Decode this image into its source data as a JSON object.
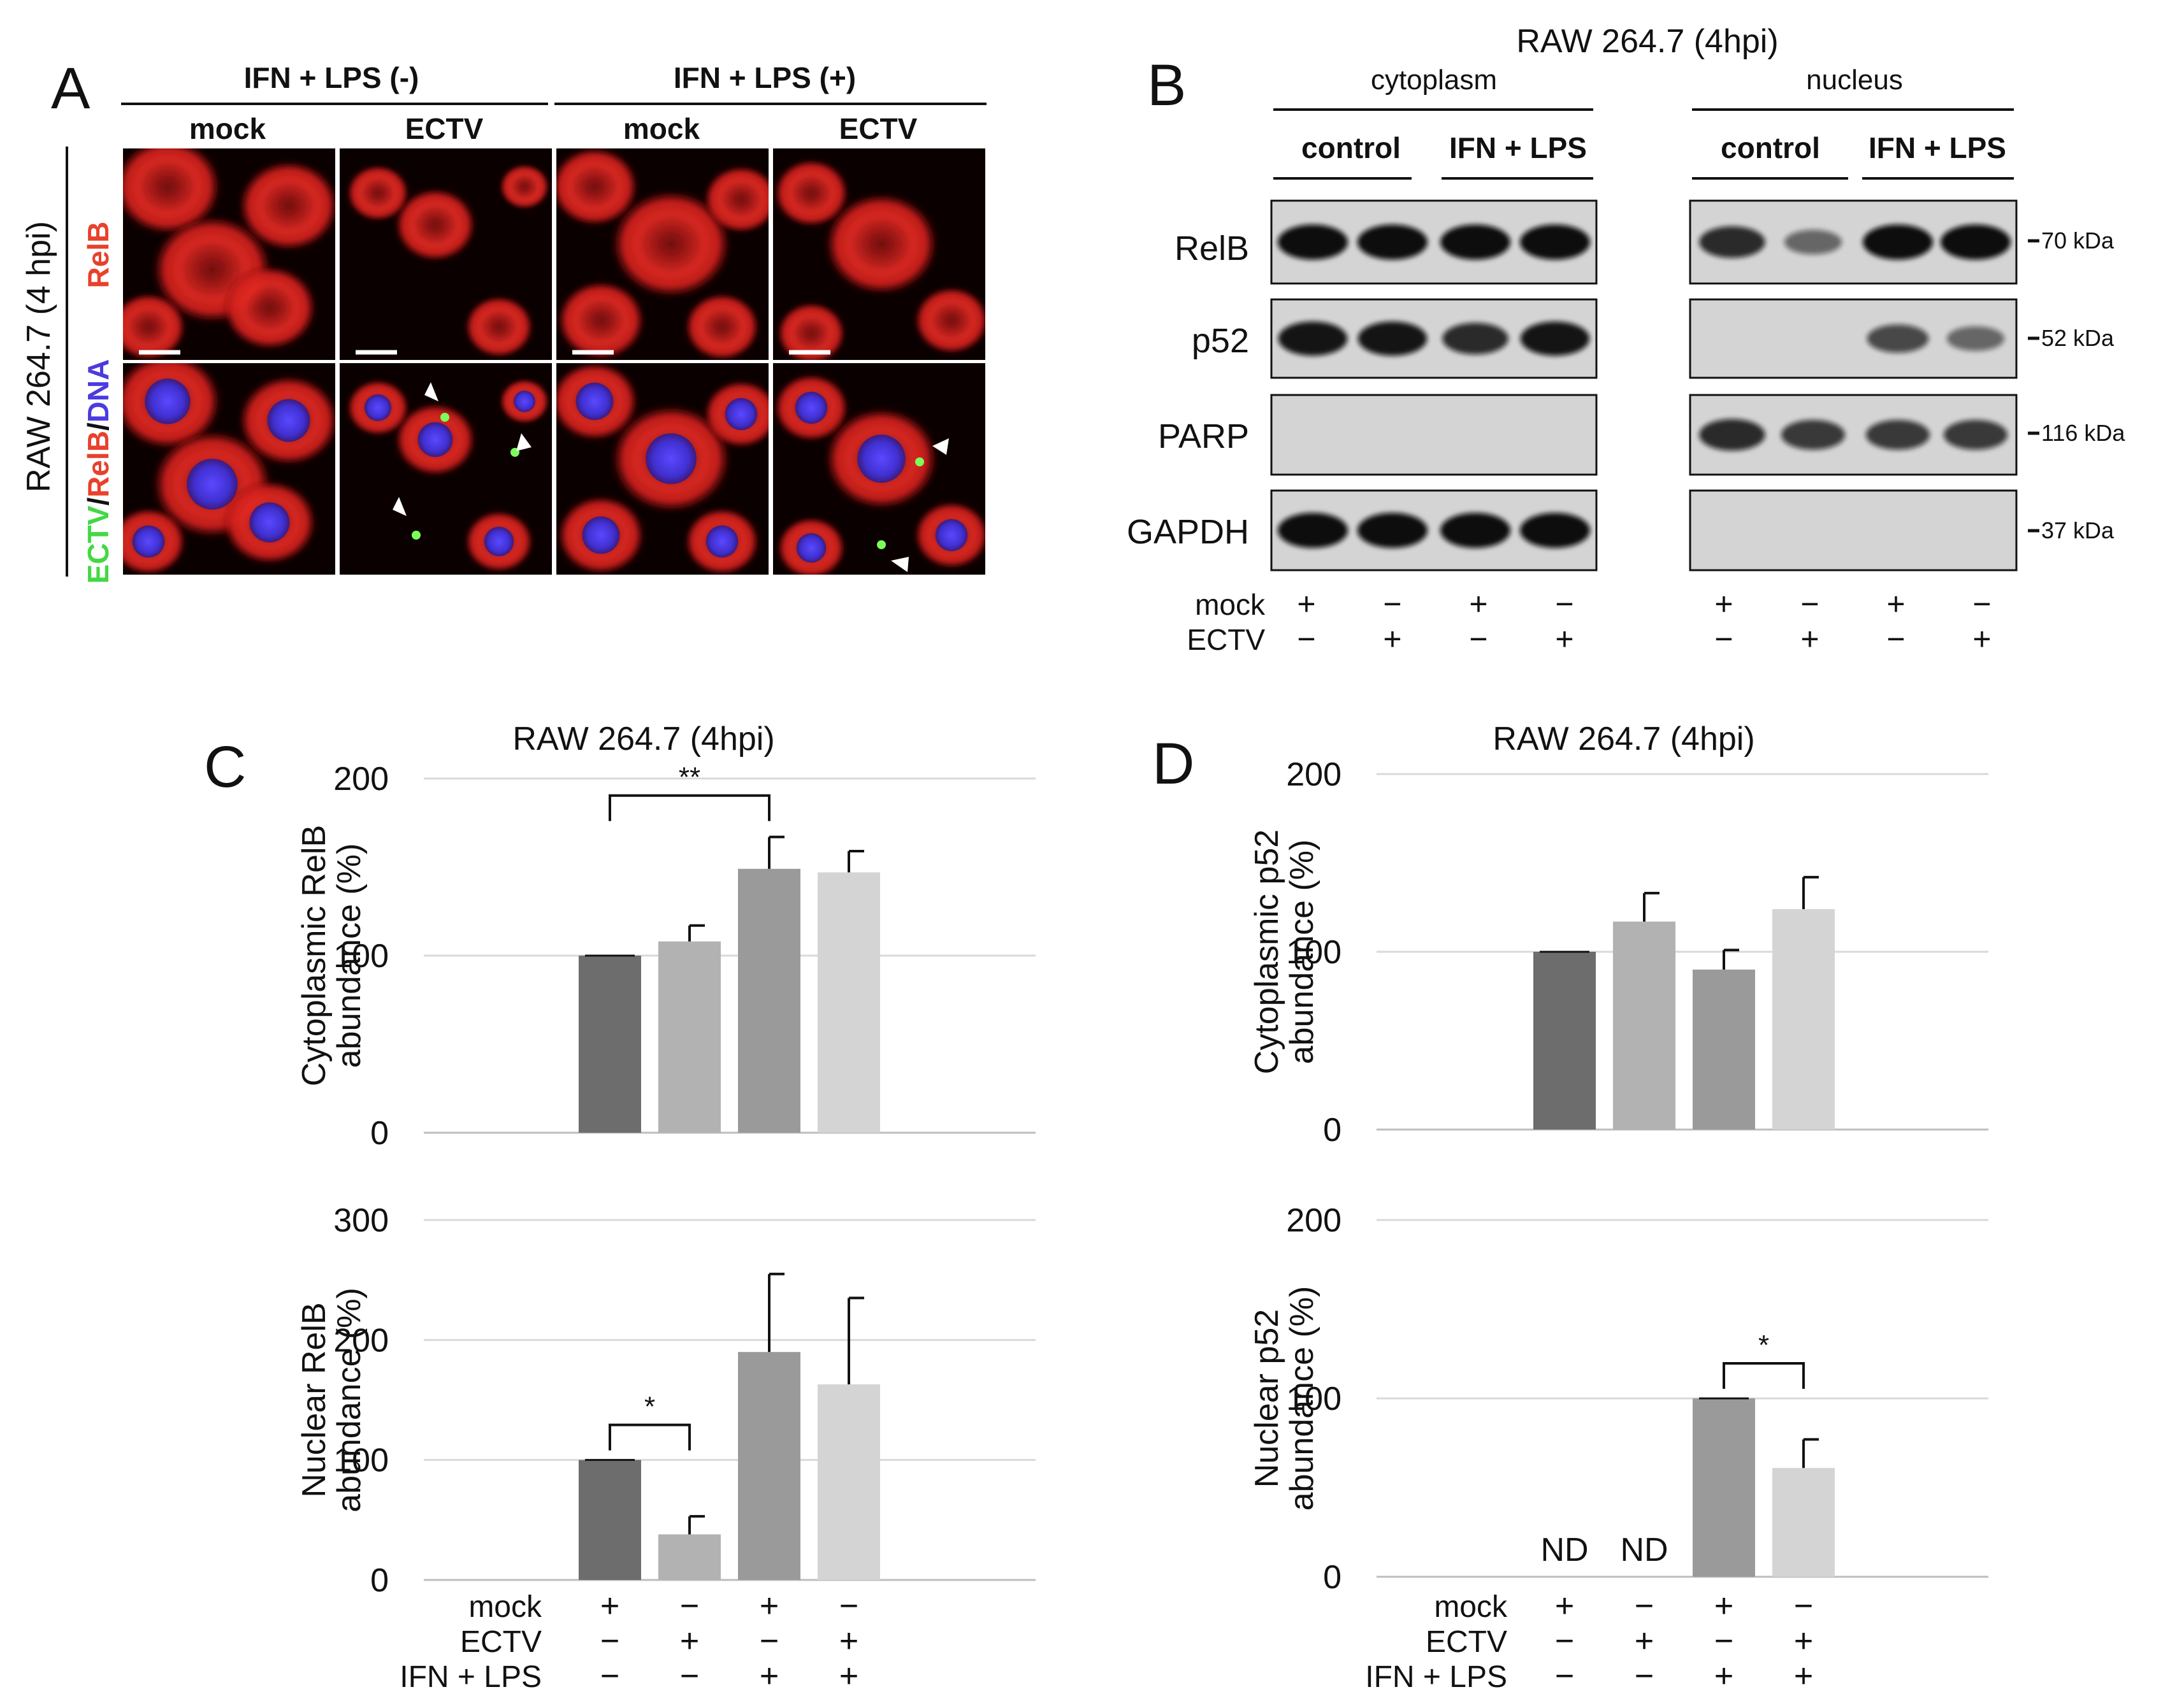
{
  "panel_letters": {
    "a": "A",
    "b": "B",
    "c": "C",
    "d": "D"
  },
  "panel_a": {
    "row_label": "RAW 264.7 (4 hpi)",
    "channel_top": "RelB",
    "channel_bottom": {
      "ectv": "ECTV",
      "sep1": "/",
      "relb": "RelB",
      "sep2": "/",
      "dna": "DNA"
    },
    "group_labels": [
      "IFN + LPS (-)",
      "IFN + LPS (+)"
    ],
    "column_labels": [
      "mock",
      "ECTV",
      "mock",
      "ECTV"
    ],
    "colors": {
      "relb": "#e8412c",
      "dna": "#4b3be0",
      "ectv": "#44d844"
    }
  },
  "panel_b": {
    "title": "RAW 264.7 (4hpi)",
    "fractions": [
      "cytoplasm",
      "nucleus"
    ],
    "condition_labels": [
      "control",
      "IFN + LPS",
      "control",
      "IFN + LPS"
    ],
    "proteins": [
      "RelB",
      "p52",
      "PARP",
      "GAPDH"
    ],
    "markers": [
      "70 kDa",
      "52 kDa",
      "116 kDa",
      "37 kDa"
    ],
    "row_labels": [
      "mock",
      "ECTV"
    ],
    "mock_signs": [
      "+",
      "−",
      "+",
      "−",
      "+",
      "−",
      "+",
      "−"
    ],
    "ectv_signs": [
      "−",
      "+",
      "−",
      "+",
      "−",
      "+",
      "−",
      "+"
    ],
    "band_levels": {
      "cytoplasm": {
        "RelB": [
          1.0,
          1.0,
          1.0,
          1.0
        ],
        "p52": [
          0.95,
          0.95,
          0.8,
          0.95
        ],
        "PARP": [
          0,
          0,
          0,
          0
        ],
        "GAPDH": [
          1.0,
          1.0,
          1.0,
          1.0
        ]
      },
      "nucleus": {
        "RelB": [
          0.8,
          0.4,
          1.0,
          1.0
        ],
        "p52": [
          0,
          0,
          0.6,
          0.4
        ],
        "PARP": [
          0.8,
          0.7,
          0.7,
          0.7
        ],
        "GAPDH": [
          0,
          0,
          0,
          0
        ]
      }
    }
  },
  "chart_data": [
    {
      "type": "bar",
      "panel": "C",
      "title": "RAW 264.7 (4hpi)",
      "ylabel": [
        "Cytoplasmic RelB",
        "abundance (%)"
      ],
      "ylim": [
        0,
        200
      ],
      "yticks": [
        0,
        100,
        200
      ],
      "values": [
        100,
        108,
        149,
        147
      ],
      "errors": [
        0,
        9,
        18,
        12
      ],
      "value_labels": [
        "",
        "",
        "",
        ""
      ],
      "significance": [
        {
          "from": 0,
          "to": 2,
          "label": "**"
        }
      ],
      "colors": [
        "#6d6d6d",
        "#b2b2b2",
        "#9a9a9a",
        "#d4d4d4"
      ],
      "grid": true
    },
    {
      "type": "bar",
      "panel": "C",
      "ylabel": [
        "Nuclear RelB",
        "abundance (%)"
      ],
      "ylim": [
        0,
        300
      ],
      "yticks": [
        0,
        100,
        200,
        300
      ],
      "values": [
        100,
        38,
        190,
        163
      ],
      "errors": [
        0,
        15,
        65,
        72
      ],
      "value_labels": [
        "",
        "",
        "",
        ""
      ],
      "significance": [
        {
          "from": 0,
          "to": 1,
          "label": "*"
        }
      ],
      "colors": [
        "#6d6d6d",
        "#b2b2b2",
        "#9a9a9a",
        "#d4d4d4"
      ],
      "grid": true
    },
    {
      "type": "bar",
      "panel": "D",
      "title": "RAW 264.7 (4hpi)",
      "ylabel": [
        "Cytoplasmic p52",
        "abundance (%)"
      ],
      "ylim": [
        0,
        200
      ],
      "yticks": [
        0,
        100,
        200
      ],
      "values": [
        100,
        117,
        90,
        124
      ],
      "errors": [
        0,
        16,
        11,
        18
      ],
      "value_labels": [
        "",
        "",
        "",
        ""
      ],
      "significance": [],
      "colors": [
        "#6d6d6d",
        "#b2b2b2",
        "#9a9a9a",
        "#d4d4d4"
      ],
      "grid": true
    },
    {
      "type": "bar",
      "panel": "D",
      "ylabel": [
        "Nuclear p52",
        "abundance (%)"
      ],
      "ylim": [
        0,
        200
      ],
      "yticks": [
        0,
        100,
        200
      ],
      "values": [
        null,
        null,
        100,
        61
      ],
      "errors": [
        0,
        0,
        0,
        16
      ],
      "value_labels": [
        "ND",
        "ND",
        "",
        ""
      ],
      "significance": [
        {
          "from": 2,
          "to": 3,
          "label": "*"
        }
      ],
      "colors": [
        "#6d6d6d",
        "#b2b2b2",
        "#9a9a9a",
        "#d4d4d4"
      ],
      "grid": true
    }
  ],
  "condition_table": {
    "rows": [
      "mock",
      "ECTV",
      "IFN + LPS"
    ],
    "signs": [
      [
        "+",
        "−",
        "+",
        "−"
      ],
      [
        "−",
        "+",
        "−",
        "+"
      ],
      [
        "−",
        "−",
        "+",
        "+"
      ]
    ]
  }
}
